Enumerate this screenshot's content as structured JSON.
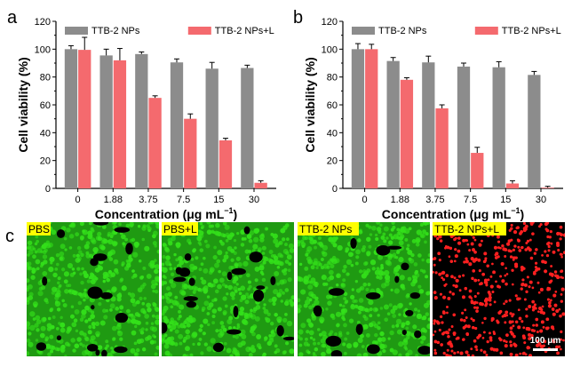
{
  "colors": {
    "series_gray": "#8c8c8c",
    "series_red": "#f46a6e",
    "micro_green": "#33e01a",
    "micro_red": "#ff2020",
    "tag_bg": "#ffff00"
  },
  "chart_data": [
    {
      "panel": "a",
      "type": "bar",
      "categories": [
        "0",
        "1.88",
        "3.75",
        "7.5",
        "15",
        "30"
      ],
      "series": [
        {
          "name": "TTB-2 NPs",
          "values": [
            100,
            95.5,
            96.5,
            90.5,
            86,
            86.5
          ],
          "errors": [
            2.5,
            4.5,
            1.5,
            2.5,
            4.5,
            2
          ]
        },
        {
          "name": "TTB-2 NPs+L",
          "values": [
            99.5,
            92,
            65,
            50,
            34.5,
            4
          ],
          "errors": [
            9,
            8.5,
            1.5,
            3.5,
            1.5,
            1.5
          ]
        }
      ],
      "xlabel": "Concentration (μg mL",
      "xlabel_sup": "−1",
      "xlabel_end": ")",
      "ylabel": "Cell viability (%)",
      "ylim": [
        0,
        120
      ],
      "yticks": [
        "0",
        "20",
        "40",
        "60",
        "80",
        "100",
        "120"
      ],
      "grid": false,
      "legend": "top"
    },
    {
      "panel": "b",
      "type": "bar",
      "categories": [
        "0",
        "1.88",
        "3.75",
        "7.5",
        "15",
        "30"
      ],
      "series": [
        {
          "name": "TTB-2 NPs",
          "values": [
            100,
            91.5,
            90.5,
            87.5,
            87,
            81.5
          ],
          "errors": [
            4,
            2.5,
            4.5,
            2.5,
            4,
            2.5
          ]
        },
        {
          "name": "TTB-2 NPs+L",
          "values": [
            100,
            78,
            57.5,
            25.5,
            3.5,
            0.5
          ],
          "errors": [
            3.5,
            1.5,
            2.5,
            4,
            2,
            1
          ]
        }
      ],
      "xlabel": "Concentration (μg mL",
      "xlabel_sup": "−1",
      "xlabel_end": ")",
      "ylabel": "Cell viability (%)",
      "ylim": [
        0,
        120
      ],
      "yticks": [
        "0",
        "20",
        "40",
        "60",
        "80",
        "100",
        "120"
      ],
      "grid": false,
      "legend": "top"
    }
  ],
  "panels_c": {
    "label": "c",
    "images": [
      {
        "tag": "PBS",
        "stain": "green",
        "density": 0.72
      },
      {
        "tag": "PBS+L",
        "stain": "green",
        "density": 0.66
      },
      {
        "tag": "TTB-2 NPs",
        "stain": "green",
        "density": 0.7
      },
      {
        "tag": "TTB-2 NPs+L",
        "stain": "red",
        "density": 0.1
      }
    ],
    "scale_bar": "100 μm"
  }
}
